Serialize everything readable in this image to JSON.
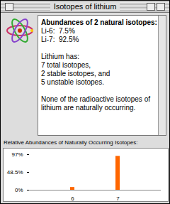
{
  "window": {
    "title": "Isotopes of lithium"
  },
  "info": {
    "heading": "Abundances of 2 natural isotopes:",
    "lines": [
      "Li-6:  7.5%",
      "Li-7:  92.5%"
    ],
    "paragraphs": [
      [
        "Lithium has:",
        "7 total isotopes,",
        "2 stable isotopes, and",
        "5 unstable isotopes."
      ],
      [
        "None of the radioactive isotopes of lithium are naturally occurring."
      ]
    ]
  },
  "chart_data": {
    "type": "bar",
    "title": "Relative Abundances of Naturally Occurring Isotopes:",
    "categories": [
      "6",
      "7"
    ],
    "values": [
      7.5,
      92.5
    ],
    "color": "#ff6600",
    "ylim": [
      0,
      97
    ],
    "yticks": [
      {
        "value": 0,
        "label": "0%"
      },
      {
        "value": 48.5,
        "label": "48.5%"
      },
      {
        "value": 97,
        "label": "97%"
      }
    ]
  }
}
